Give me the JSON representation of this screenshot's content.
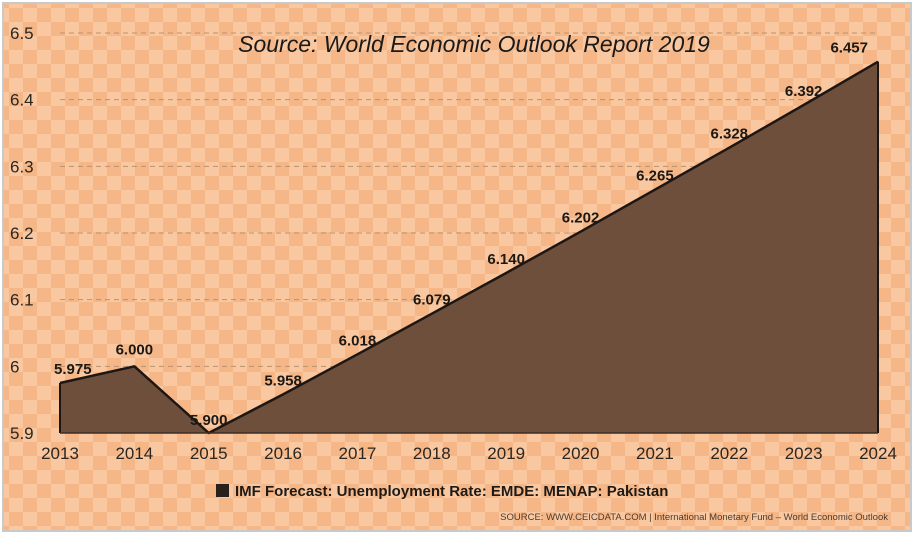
{
  "chart_data": {
    "type": "area",
    "title": "Source: World Economic Outlook Report 2019",
    "x": [
      "2013",
      "2014",
      "2015",
      "2016",
      "2017",
      "2018",
      "2019",
      "2020",
      "2021",
      "2022",
      "2023",
      "2024"
    ],
    "values": [
      5.975,
      6.0,
      5.9,
      5.958,
      6.018,
      6.079,
      6.14,
      6.202,
      6.265,
      6.328,
      6.392,
      6.457
    ],
    "value_labels": [
      "5.975",
      "6.000",
      "5.900",
      "5.958",
      "6.018",
      "6.079",
      "6.140",
      "6.202",
      "6.265",
      "6.328",
      "6.392",
      "6.457"
    ],
    "ylim": [
      5.9,
      6.5
    ],
    "yticks": [
      5.9,
      6.0,
      6.1,
      6.2,
      6.3,
      6.4,
      6.5
    ],
    "ytick_labels": [
      "5.9",
      "6",
      "6.1",
      "6.2",
      "6.3",
      "6.4",
      "6.5"
    ],
    "legend": "IMF Forecast: Unemployment Rate: EMDE: MENAP: Pakistan",
    "legend_position": "bottom",
    "source_note": "SOURCE: WWW.CEICDATA.COM | International Monetary Fund – World Economic Outlook",
    "grid": true,
    "colors": {
      "fill": "#6e4f3c",
      "line": "#1e1612",
      "background": "#f5b787",
      "checker": "#f9c8a1",
      "frame": "#c9c9c9"
    }
  }
}
